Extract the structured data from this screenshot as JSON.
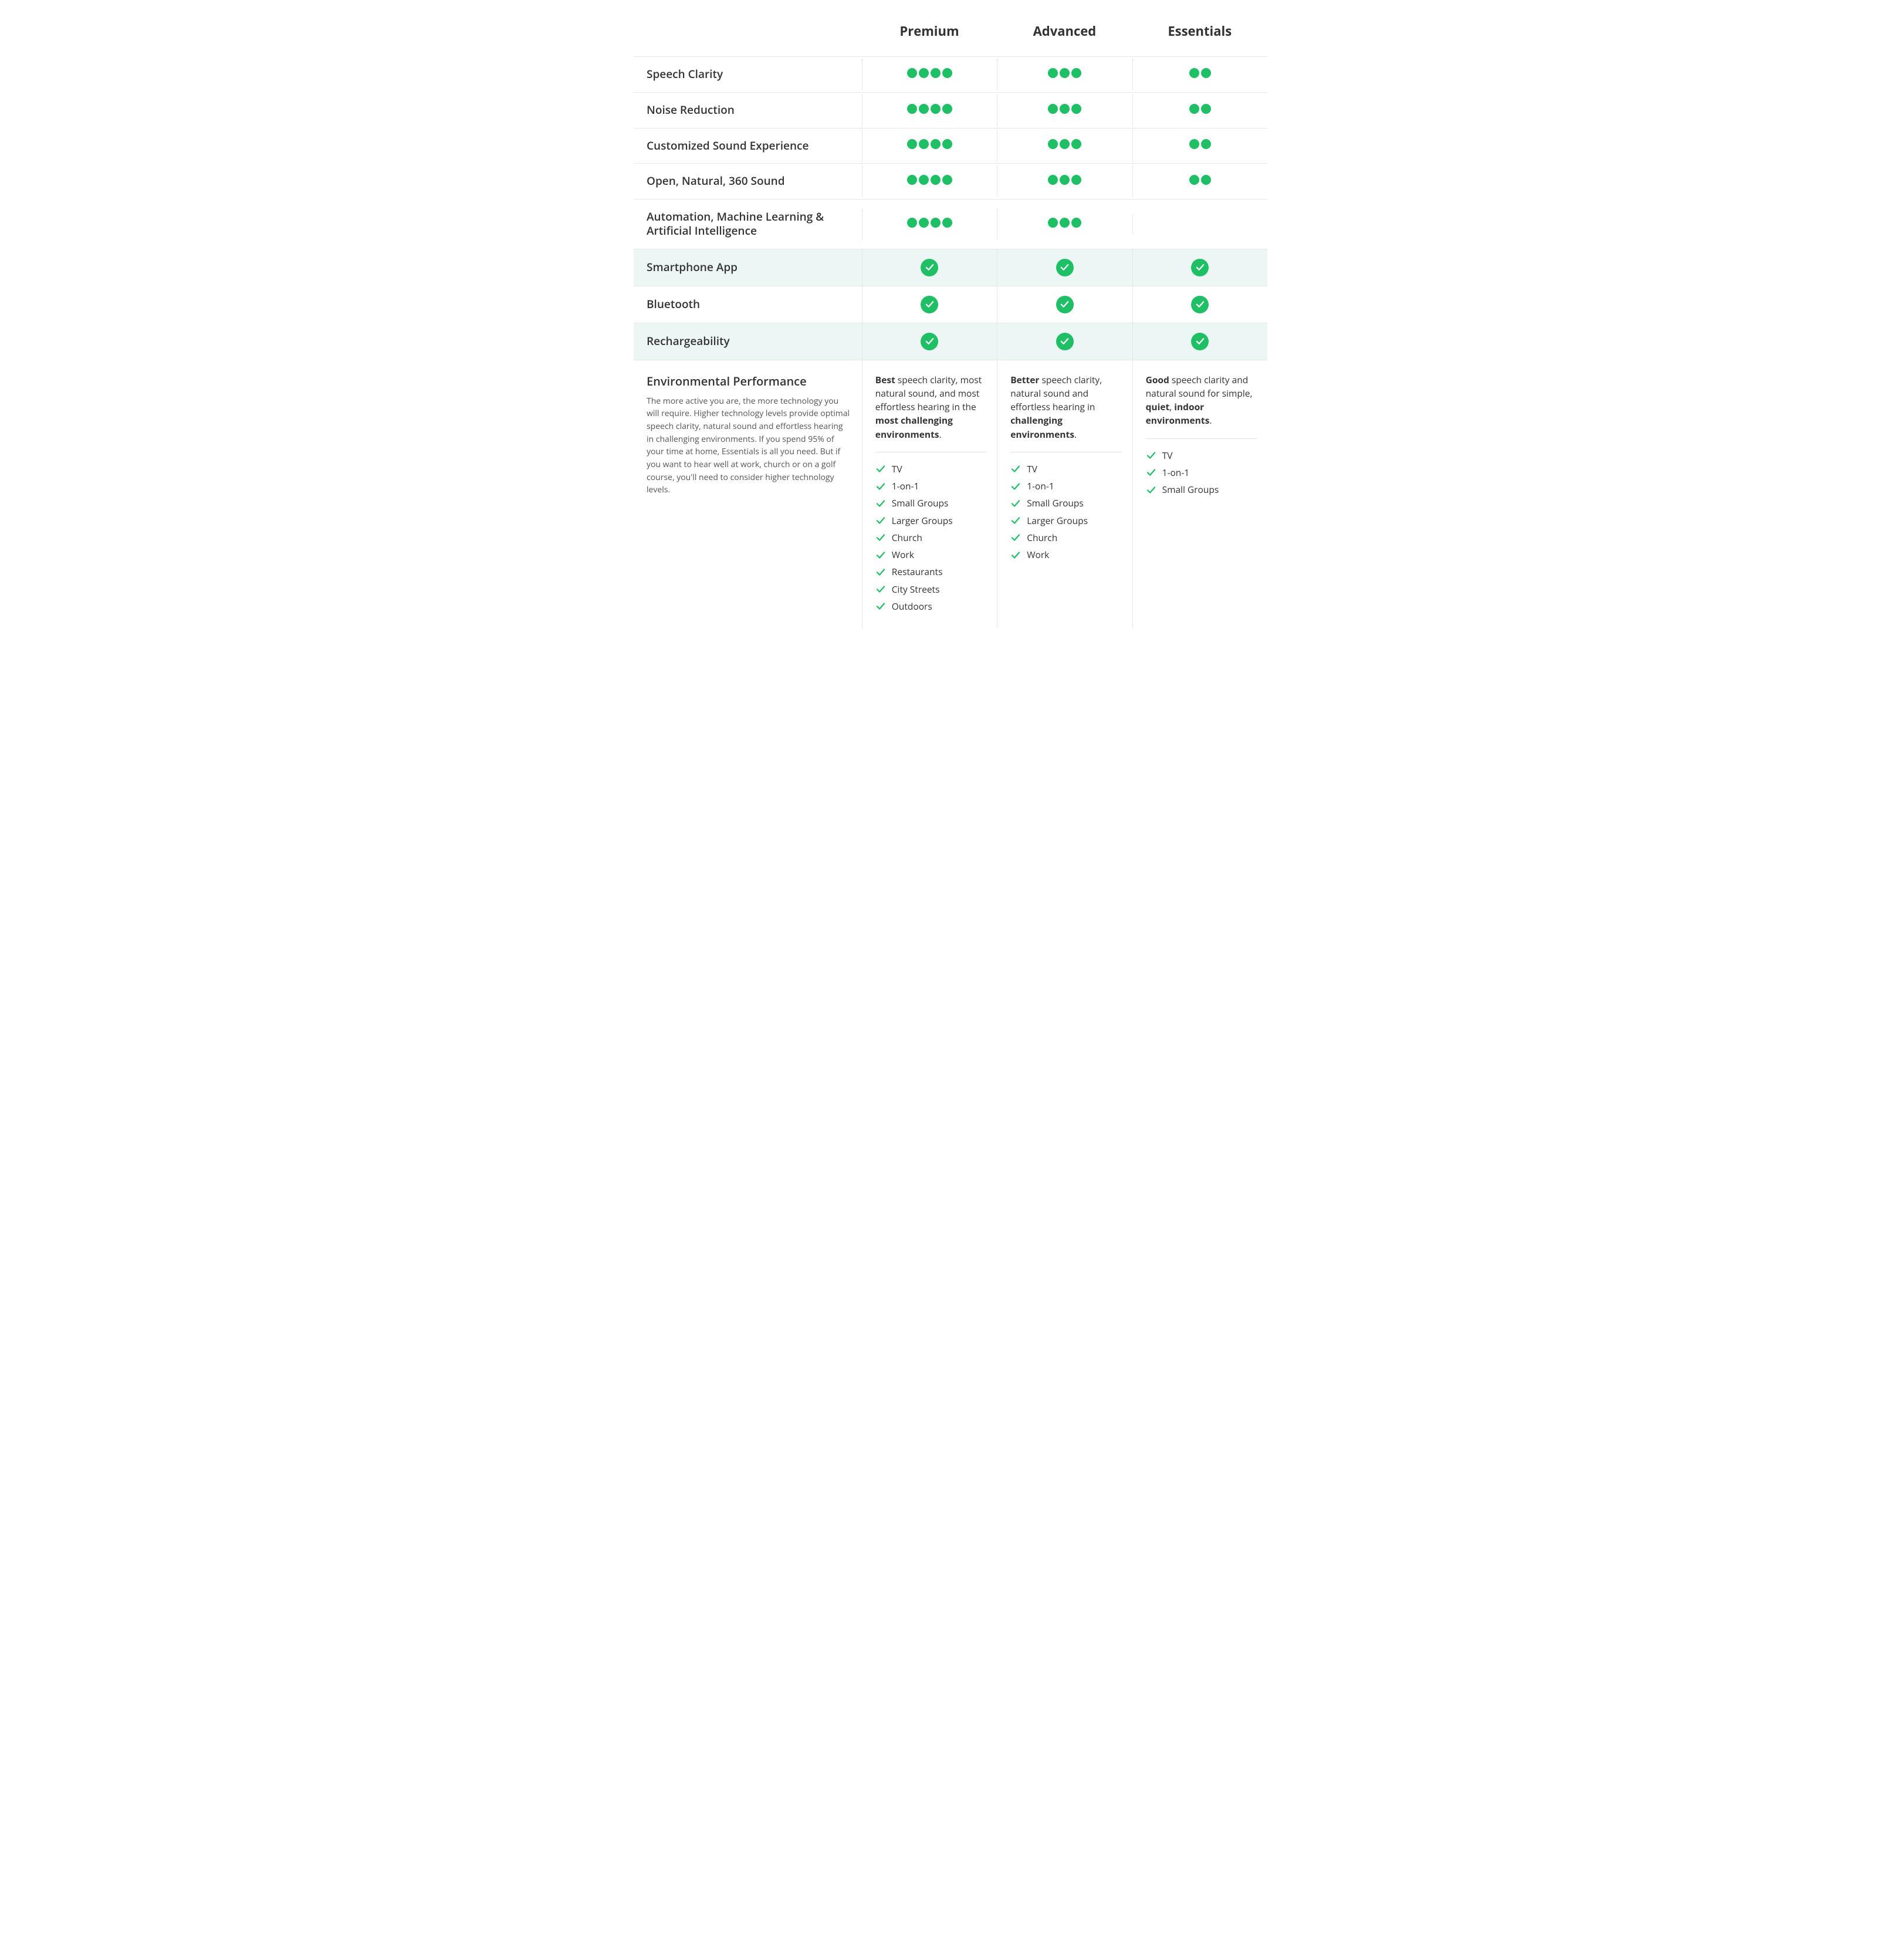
{
  "colors": {
    "dot": "#1fc065",
    "check_bg": "#1fc065",
    "check_fg": "#ffffff",
    "tick": "#1fc065",
    "tint_bg": "#ecf6f5",
    "border": "#e6e6e6",
    "text": "#333333",
    "subtext": "#555555"
  },
  "tiers": [
    "Premium",
    "Advanced",
    "Essentials"
  ],
  "features": [
    {
      "label": "Speech Clarity",
      "type": "dots",
      "values": [
        4,
        3,
        2
      ],
      "tinted": false
    },
    {
      "label": "Noise Reduction",
      "type": "dots",
      "values": [
        4,
        3,
        2
      ],
      "tinted": false
    },
    {
      "label": "Customized Sound Experience",
      "type": "dots",
      "values": [
        4,
        3,
        2
      ],
      "tinted": false
    },
    {
      "label": "Open, Natural, 360 Sound",
      "type": "dots",
      "values": [
        4,
        3,
        2
      ],
      "tinted": false
    },
    {
      "label": "Automation, Machine Learning & Artificial Intelligence",
      "type": "dots",
      "values": [
        4,
        3,
        0
      ],
      "tinted": false
    },
    {
      "label": "Smartphone App",
      "type": "check",
      "values": [
        true,
        true,
        true
      ],
      "tinted": true
    },
    {
      "label": "Bluetooth",
      "type": "check",
      "values": [
        true,
        true,
        true
      ],
      "tinted": false
    },
    {
      "label": "Rechargeability",
      "type": "check",
      "values": [
        true,
        true,
        true
      ],
      "tinted": true
    }
  ],
  "environmental": {
    "heading": "Environmental Performance",
    "description": "The more active you are, the more technology you will require. Higher technology levels provide optimal speech clarity, natural sound and effortless hearing in challenging environments. If you spend 95% of your time at home, Essentials is all you need. But if you want to hear well at work, church or on a golf course, you'll need to consider higher technology levels.",
    "columns": [
      {
        "desc_html": "<b>Best</b> speech clarity, most natural sound, and most effortless hearing in the <b>most challenging environments</b>.",
        "items": [
          "TV",
          "1-on-1",
          "Small Groups",
          "Larger Groups",
          "Church",
          "Work",
          "Restaurants",
          "City Streets",
          "Outdoors"
        ]
      },
      {
        "desc_html": "<b>Better</b> speech clarity, natural sound and effortless hearing in <b>challenging environments</b>.",
        "items": [
          "TV",
          "1-on-1",
          "Small Groups",
          "Larger Groups",
          "Church",
          "Work"
        ]
      },
      {
        "desc_html": "<b>Good</b> speech clarity and natural sound for simple, <b>quiet</b>, <b>indoor environments</b>.",
        "items": [
          "TV",
          "1-on-1",
          "Small Groups"
        ]
      }
    ]
  }
}
